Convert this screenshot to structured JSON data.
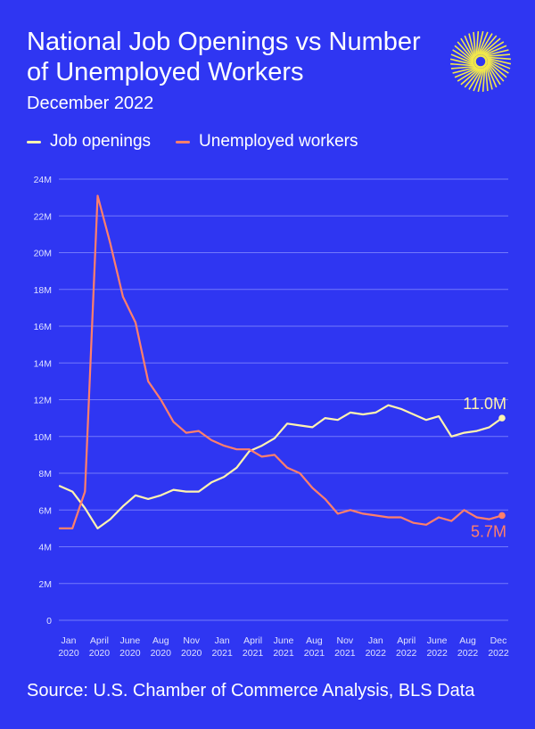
{
  "header": {
    "title": "National Job Openings vs Number of Unemployed Workers",
    "subtitle": "December 2022"
  },
  "legend": {
    "items": [
      {
        "label": "Job openings",
        "color": "#fff3b0"
      },
      {
        "label": "Unemployed workers",
        "color": "#ff7f6b"
      }
    ]
  },
  "footer": {
    "source": "Source: U.S. Chamber of Commerce Analysis, BLS Data"
  },
  "colors": {
    "background": "#2f36f2",
    "grid": "#8a90ff",
    "tick_text": "#dfe2ff"
  },
  "logo": {
    "icon": "sunburst-logo-icon",
    "color": "#f2e84a"
  },
  "chart_data": {
    "type": "line",
    "ylim": [
      0,
      24
    ],
    "y_ticks": [
      0,
      2,
      4,
      6,
      8,
      10,
      12,
      14,
      16,
      18,
      20,
      22,
      24
    ],
    "y_tick_labels": [
      "0",
      "2M",
      "4M",
      "6M",
      "8M",
      "10M",
      "12M",
      "14M",
      "16M",
      "18M",
      "20M",
      "22M",
      "24M"
    ],
    "x_tick_labels": [
      [
        "Jan",
        "2020"
      ],
      [
        "April",
        "2020"
      ],
      [
        "June",
        "2020"
      ],
      [
        "Aug",
        "2020"
      ],
      [
        "Nov",
        "2020"
      ],
      [
        "Jan",
        "2021"
      ],
      [
        "April",
        "2021"
      ],
      [
        "June",
        "2021"
      ],
      [
        "Aug",
        "2021"
      ],
      [
        "Nov",
        "2021"
      ],
      [
        "Jan",
        "2022"
      ],
      [
        "April",
        "2022"
      ],
      [
        "June",
        "2022"
      ],
      [
        "Aug",
        "2022"
      ],
      [
        "Dec",
        "2022"
      ]
    ],
    "x": [
      "2020-01",
      "2020-02",
      "2020-03",
      "2020-04",
      "2020-05",
      "2020-06",
      "2020-07",
      "2020-08",
      "2020-09",
      "2020-10",
      "2020-11",
      "2020-12",
      "2021-01",
      "2021-02",
      "2021-03",
      "2021-04",
      "2021-05",
      "2021-06",
      "2021-07",
      "2021-08",
      "2021-09",
      "2021-10",
      "2021-11",
      "2021-12",
      "2022-01",
      "2022-02",
      "2022-03",
      "2022-04",
      "2022-05",
      "2022-06",
      "2022-07",
      "2022-08",
      "2022-09",
      "2022-10",
      "2022-11",
      "2022-12"
    ],
    "series": [
      {
        "name": "Job openings",
        "color": "#fff3b0",
        "values": [
          7.3,
          7.0,
          6.1,
          5.0,
          5.5,
          6.2,
          6.8,
          6.6,
          6.8,
          7.1,
          7.0,
          7.0,
          7.5,
          7.8,
          8.3,
          9.2,
          9.5,
          9.9,
          10.7,
          10.6,
          10.5,
          11.0,
          10.9,
          11.3,
          11.2,
          11.3,
          11.7,
          11.5,
          11.2,
          10.9,
          11.1,
          10.0,
          10.2,
          10.3,
          10.5,
          11.0
        ],
        "end_label": "11.0M"
      },
      {
        "name": "Unemployed workers",
        "color": "#ff7f6b",
        "values": [
          5.0,
          5.0,
          7.0,
          23.1,
          20.5,
          17.6,
          16.2,
          13.0,
          12.0,
          10.8,
          10.2,
          10.3,
          9.8,
          9.5,
          9.3,
          9.3,
          8.9,
          9.0,
          8.3,
          8.0,
          7.2,
          6.6,
          5.8,
          6.0,
          5.8,
          5.7,
          5.6,
          5.6,
          5.3,
          5.2,
          5.6,
          5.4,
          6.0,
          5.6,
          5.5,
          5.7
        ],
        "end_label": "5.7M"
      }
    ]
  }
}
